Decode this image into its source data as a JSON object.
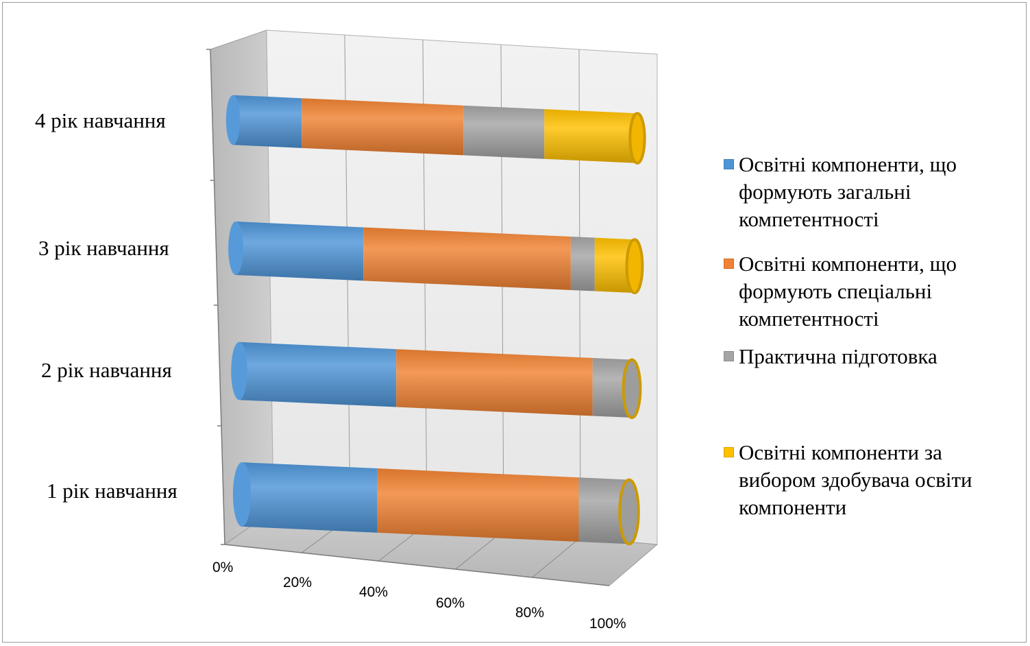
{
  "chart_data": {
    "type": "bar",
    "orientation": "horizontal",
    "stacked": "100%",
    "style": "3d-cylinder",
    "categories": [
      "1 рік навчання",
      "2 рік навчання",
      "3 рік навчання",
      "4 рік навчання"
    ],
    "series": [
      {
        "name": "Освітні компоненти, що формують загальні компетентності",
        "color": "#4e95d8",
        "values": [
          35,
          40,
          32,
          17
        ]
      },
      {
        "name": "Освітні компоненти, що формують спеціальні компетентності",
        "color": "#f08232",
        "values": [
          52,
          50,
          52,
          40
        ]
      },
      {
        "name": "Практична  підготовка",
        "color": "#a5a5a5",
        "values": [
          13,
          10,
          6,
          20
        ]
      },
      {
        "name": "Освітні компоненти за вибором здобувача освіти компоненти",
        "color": "#ffc000",
        "values": [
          0,
          0,
          10,
          23
        ]
      }
    ],
    "xaxis": {
      "ticks": [
        "0%",
        "20%",
        "40%",
        "60%",
        "80%",
        "100%"
      ],
      "range": [
        0,
        100
      ]
    },
    "grid": true,
    "legend_position": "right"
  }
}
